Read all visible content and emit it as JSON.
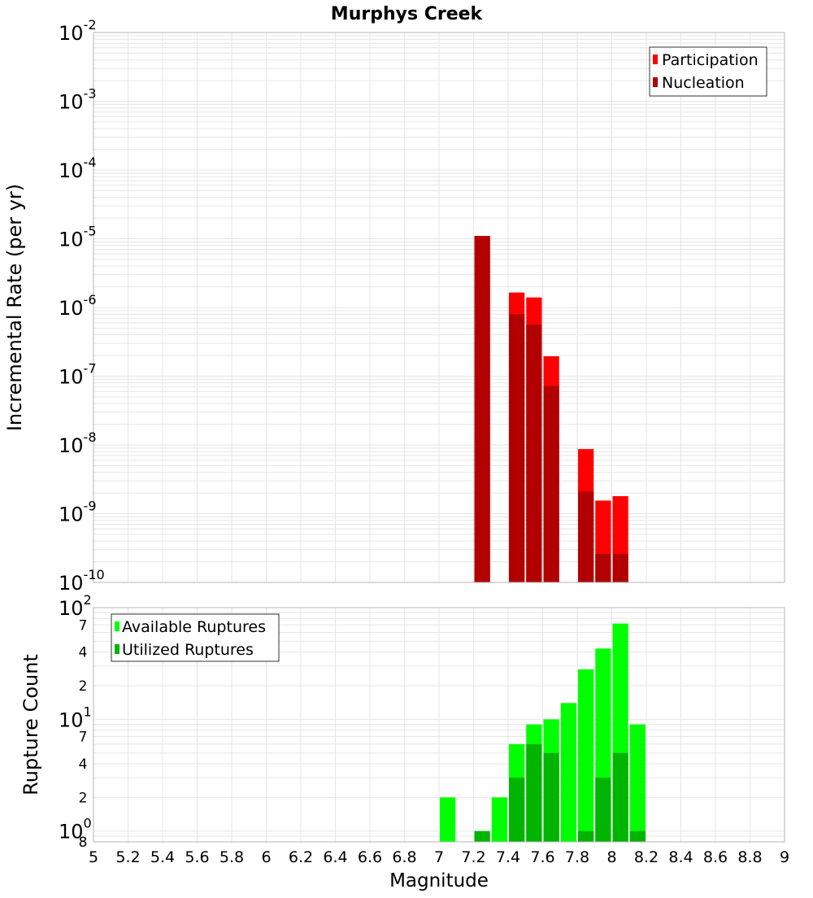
{
  "title": "Murphys Creek",
  "xlabel": "Magnitude",
  "xticks": [
    "5",
    "5.2",
    "5.4",
    "5.6",
    "5.8",
    "6",
    "6.2",
    "6.4",
    "6.6",
    "6.8",
    "7",
    "7.2",
    "7.4",
    "7.6",
    "7.8",
    "8",
    "8.2",
    "8.4",
    "8.6",
    "8.8",
    "9"
  ],
  "colors": {
    "participation": "#ff0000",
    "nucleation": "#b20000",
    "available": "#00ff00",
    "utilized": "#00b400",
    "grid": "#e6e6e6",
    "frame": "#b4b4b4"
  },
  "chart_data": [
    {
      "type": "bar",
      "ylabel": "Incremental Rate (per yr)",
      "yscale": "log",
      "ylim": [
        1e-10,
        0.01
      ],
      "xlim": [
        5,
        9
      ],
      "ytick_bases": [
        "10",
        "10",
        "10",
        "10",
        "10",
        "10",
        "10",
        "10",
        "10"
      ],
      "ytick_exponents": [
        "-10",
        "-9",
        "-8",
        "-7",
        "-6",
        "-5",
        "-4",
        "-3",
        "-2"
      ],
      "legend": {
        "placement": "top-right",
        "entries": [
          "Participation",
          "Nucleation"
        ]
      },
      "series": [
        {
          "name": "Participation",
          "x": [
            7.25,
            7.45,
            7.55,
            7.65,
            7.85,
            7.95,
            8.05
          ],
          "values": [
            1.1e-05,
            1.65e-06,
            1.4e-06,
            1.95e-07,
            8.7e-09,
            1.55e-09,
            1.8e-09
          ]
        },
        {
          "name": "Nucleation",
          "x": [
            7.25,
            7.45,
            7.55,
            7.65,
            7.85,
            7.95,
            8.05
          ],
          "values": [
            1.1e-05,
            8e-07,
            5.6e-07,
            7.2e-08,
            2.1e-09,
            2.6e-10,
            2.6e-10
          ]
        }
      ]
    },
    {
      "type": "bar",
      "ylabel": "Rupture Count",
      "yscale": "log",
      "ylim": [
        0.8,
        100
      ],
      "xlim": [
        5,
        9
      ],
      "major_ticks": [
        {
          "value": 1,
          "base": "10",
          "exp": "0"
        },
        {
          "value": 10,
          "base": "10",
          "exp": "1"
        },
        {
          "value": 100,
          "base": "10",
          "exp": "2"
        }
      ],
      "minor_ticks": [
        {
          "value": 0.8,
          "label": "8"
        },
        {
          "value": 2,
          "label": "2"
        },
        {
          "value": 4,
          "label": "4"
        },
        {
          "value": 7,
          "label": "7"
        },
        {
          "value": 20,
          "label": "2"
        },
        {
          "value": 40,
          "label": "4"
        },
        {
          "value": 70,
          "label": "7"
        }
      ],
      "legend": {
        "placement": "top-left",
        "entries": [
          "Available Ruptures",
          "Utilized Ruptures"
        ]
      },
      "series": [
        {
          "name": "Available Ruptures",
          "x": [
            7.05,
            7.35,
            7.45,
            7.55,
            7.65,
            7.75,
            7.85,
            7.95,
            8.05,
            8.15
          ],
          "values": [
            2,
            2,
            6,
            9,
            10,
            14,
            28,
            43,
            72,
            9
          ]
        },
        {
          "name": "Utilized Ruptures",
          "x": [
            7.25,
            7.45,
            7.55,
            7.65,
            7.85,
            7.95,
            8.05,
            8.15
          ],
          "values": [
            1,
            3,
            6,
            5,
            1,
            3,
            5,
            1
          ]
        }
      ]
    }
  ]
}
